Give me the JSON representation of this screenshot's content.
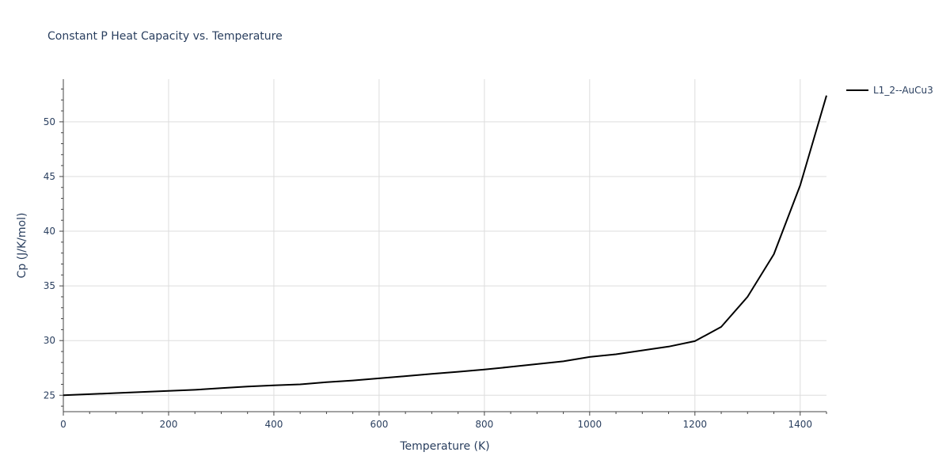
{
  "chart_data": {
    "type": "line",
    "title": "Constant P Heat Capacity vs. Temperature",
    "xlabel": "Temperature (K)",
    "ylabel": "Cp (J/K/mol)",
    "xlim": [
      0,
      1450
    ],
    "ylim": [
      23.5,
      53.9
    ],
    "xticks": [
      0,
      200,
      400,
      600,
      800,
      1000,
      1200,
      1400
    ],
    "yticks": [
      25,
      30,
      35,
      40,
      45,
      50
    ],
    "xtick_labels": [
      "0",
      "200",
      "400",
      "600",
      "800",
      "1000",
      "1200",
      "1400"
    ],
    "ytick_labels": [
      "25",
      "30",
      "35",
      "40",
      "45",
      "50"
    ],
    "grid": true,
    "legend_position": "top-right",
    "series": [
      {
        "name": "L1_2--AuCu3",
        "color": "#000000",
        "x": [
          0,
          50,
          100,
          150,
          200,
          250,
          300,
          350,
          400,
          450,
          500,
          550,
          600,
          650,
          700,
          750,
          800,
          850,
          900,
          950,
          1000,
          1050,
          1100,
          1150,
          1200,
          1250,
          1300,
          1350,
          1400,
          1450
        ],
        "y": [
          25.0,
          25.1,
          25.2,
          25.3,
          25.4,
          25.5,
          25.65,
          25.8,
          25.9,
          26.0,
          26.2,
          26.35,
          26.55,
          26.75,
          26.95,
          27.15,
          27.35,
          27.6,
          27.85,
          28.1,
          28.5,
          28.75,
          29.1,
          29.45,
          29.95,
          31.25,
          34.0,
          37.9,
          44.2,
          52.4
        ]
      }
    ]
  }
}
